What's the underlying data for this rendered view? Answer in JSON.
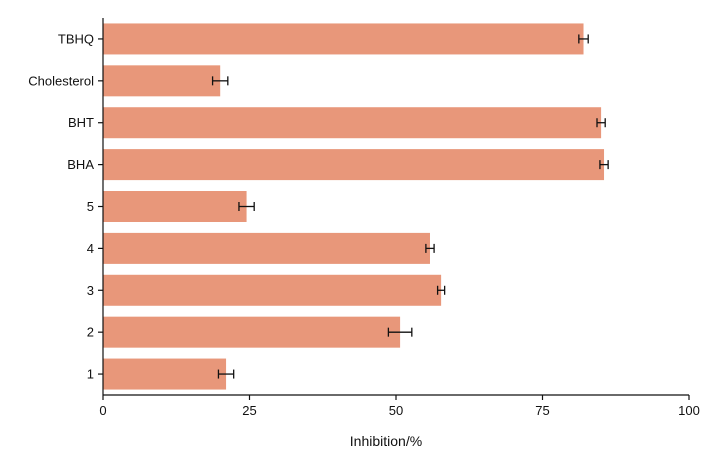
{
  "chart_data": {
    "type": "bar",
    "orientation": "horizontal",
    "categories": [
      "TBHQ",
      "Cholesterol",
      "BHT",
      "BHA",
      "5",
      "4",
      "3",
      "2",
      "1"
    ],
    "series": [
      {
        "values": [
          82.0,
          20.0,
          85.0,
          85.5,
          24.5,
          55.8,
          57.7,
          50.7,
          21.0
        ],
        "errors": [
          0.8,
          1.3,
          0.7,
          0.7,
          1.3,
          0.7,
          0.6,
          2.0,
          1.3
        ]
      }
    ],
    "xlabel": "Inhibition/%",
    "ylabel": "",
    "xlim": [
      0,
      100
    ],
    "xticks": [
      0,
      25,
      50,
      75,
      100
    ],
    "grid": false,
    "legend": "none",
    "bar_color": "#e8977a",
    "error_bar_color": "#111111"
  }
}
